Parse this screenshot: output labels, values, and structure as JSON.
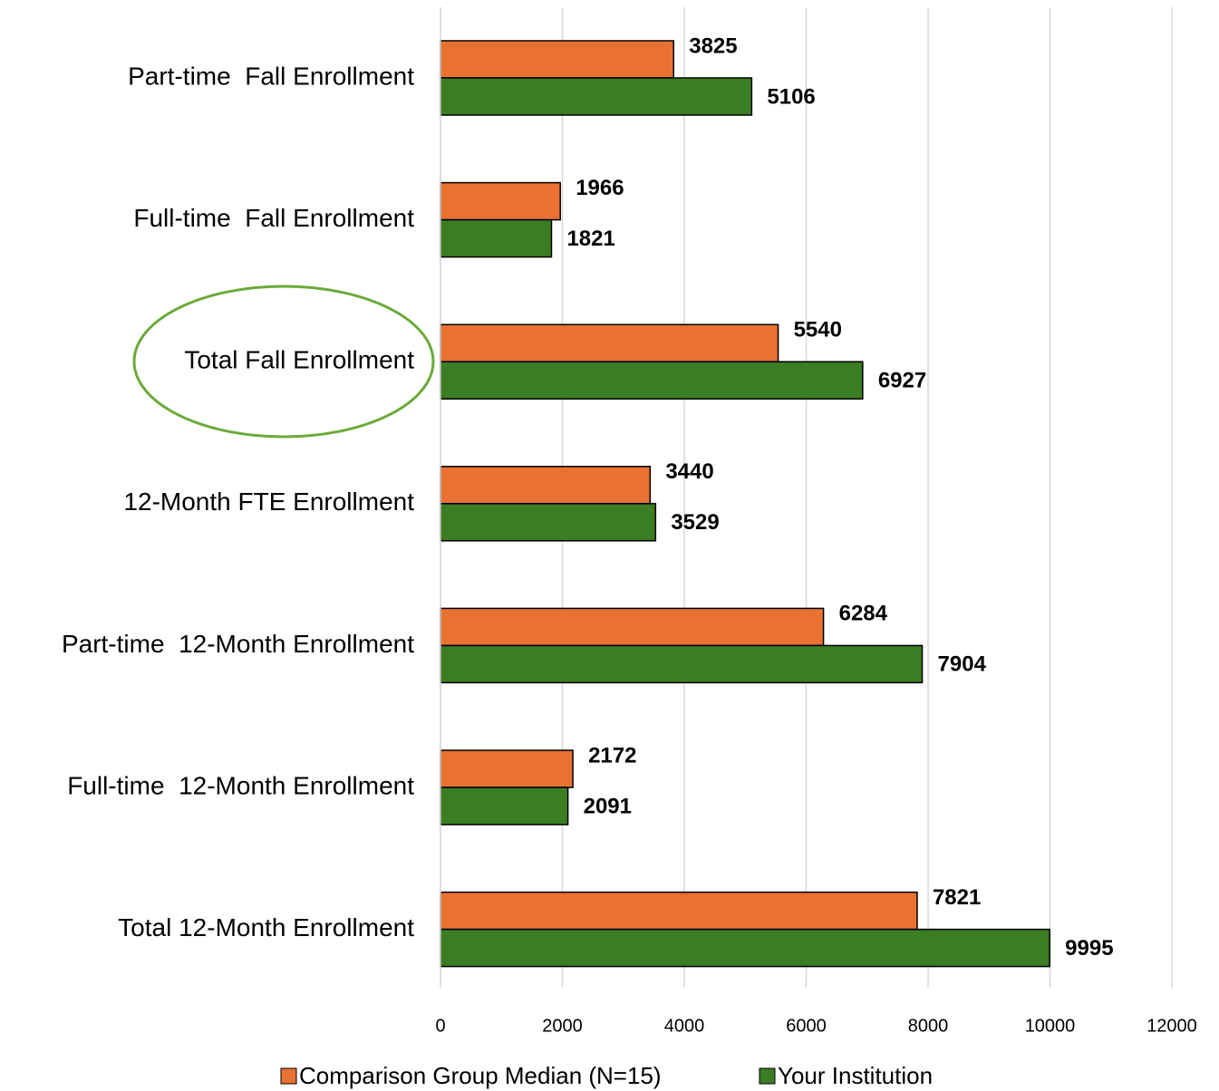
{
  "chart_data": {
    "type": "bar",
    "orientation": "horizontal",
    "categories": [
      "Part-time  Fall Enrollment",
      "Full-time  Fall Enrollment",
      "Total Fall Enrollment",
      "12-Month FTE Enrollment",
      "Part-time  12-Month Enrollment",
      "Full-time  12-Month Enrollment",
      "Total 12-Month Enrollment"
    ],
    "series": [
      {
        "name": "Comparison Group Median (N=15)",
        "color": "#e97132",
        "values": [
          3825,
          1966,
          5540,
          3440,
          6284,
          2172,
          7821
        ]
      },
      {
        "name": "Your Institution",
        "color": "#3a7d22",
        "values": [
          5106,
          1821,
          6927,
          3529,
          7904,
          2091,
          9995
        ]
      }
    ],
    "xlim": [
      0,
      12000
    ],
    "xticks": [
      0,
      2000,
      4000,
      6000,
      8000,
      10000,
      12000
    ],
    "grid": true,
    "legend": "bottom"
  }
}
